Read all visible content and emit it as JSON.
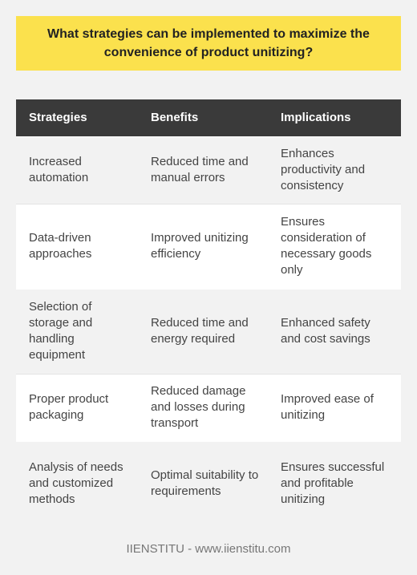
{
  "title": "What strategies can be implemented to maximize the convenience of product unitizing?",
  "table": {
    "headers": [
      "Strategies",
      "Benefits",
      "Implications"
    ],
    "rows": [
      {
        "strategy": "Increased automation",
        "benefit": "Reduced time and manual errors",
        "implication": "Enhances productivity and consistency"
      },
      {
        "strategy": "Data-driven approaches",
        "benefit": "Improved unitizing efficiency",
        "implication": "Ensures consideration of necessary goods only"
      },
      {
        "strategy": "Selection of storage and handling equipment",
        "benefit": "Reduced time and energy required",
        "implication": "Enhanced safety and cost savings"
      },
      {
        "strategy": "Proper product packaging",
        "benefit": "Reduced damage and losses during transport",
        "implication": "Improved ease of unitizing"
      },
      {
        "strategy": "Analysis of needs and customized methods",
        "benefit": "Optimal suitability to requirements",
        "implication": "Ensures successful and profitable unitizing"
      }
    ]
  },
  "footer": "IIENSTITU - www.iienstitu.com",
  "colors": {
    "title_background": "#fbe14d",
    "header_background": "#3a3a3a",
    "page_background": "#f2f2f2"
  }
}
